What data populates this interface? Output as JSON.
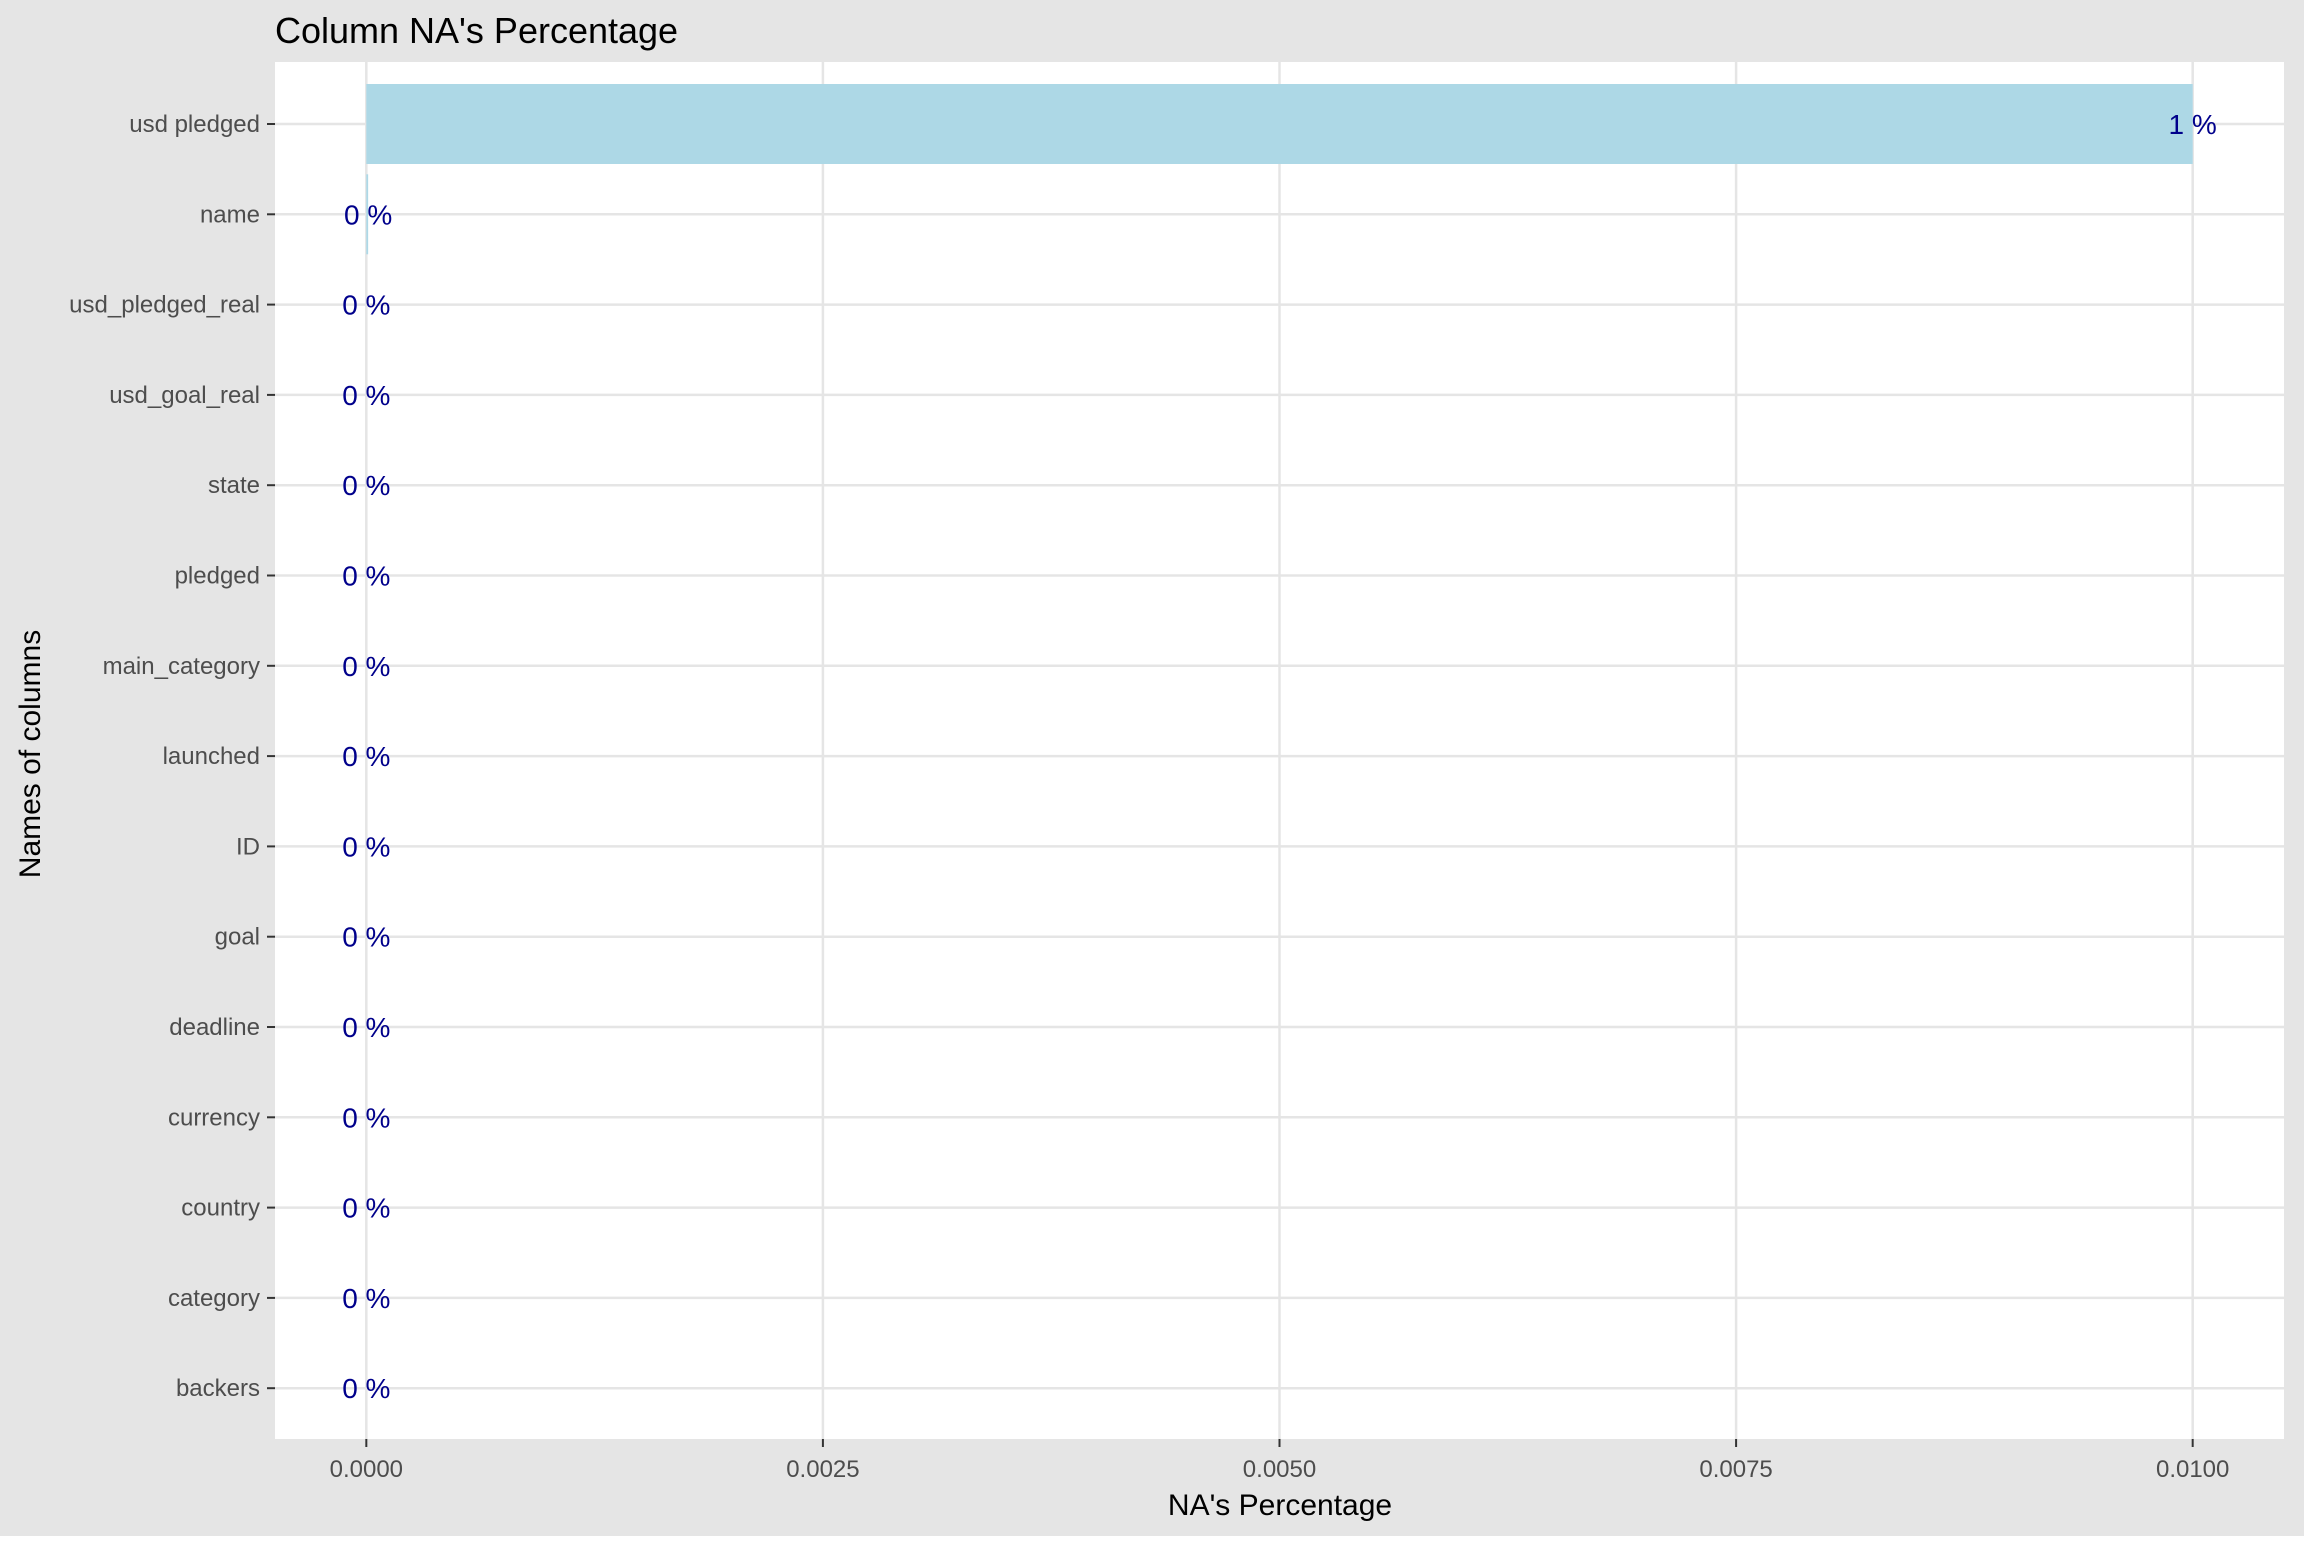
{
  "chart_data": {
    "type": "bar",
    "orientation": "horizontal",
    "title": "Column NA's Percentage",
    "xlabel": "NA's Percentage",
    "ylabel": "Names of columns",
    "categories": [
      "usd pledged",
      "name",
      "usd_pledged_real",
      "usd_goal_real",
      "state",
      "pledged",
      "main_category",
      "launched",
      "ID",
      "goal",
      "deadline",
      "currency",
      "country",
      "category",
      "backers"
    ],
    "values": [
      0.01,
      1e-05,
      0,
      0,
      0,
      0,
      0,
      0,
      0,
      0,
      0,
      0,
      0,
      0,
      0
    ],
    "data_labels": [
      "1 %",
      "0 %",
      "0 %",
      "0 %",
      "0 %",
      "0 %",
      "0 %",
      "0 %",
      "0 %",
      "0 %",
      "0 %",
      "0 %",
      "0 %",
      "0 %",
      "0 %"
    ],
    "xlim": [
      -0.0005,
      0.0105
    ],
    "xticks": [
      0,
      0.0025,
      0.005,
      0.0075,
      0.01
    ],
    "xtick_labels": [
      "0.0000",
      "0.0025",
      "0.0050",
      "0.0075",
      "0.0100"
    ],
    "grid": true,
    "colors": {
      "bar": "#add8e6",
      "label": "#00008b",
      "panel": "#ffffff",
      "background": "#e5e5e5",
      "grid": "#e5e5e5"
    }
  }
}
